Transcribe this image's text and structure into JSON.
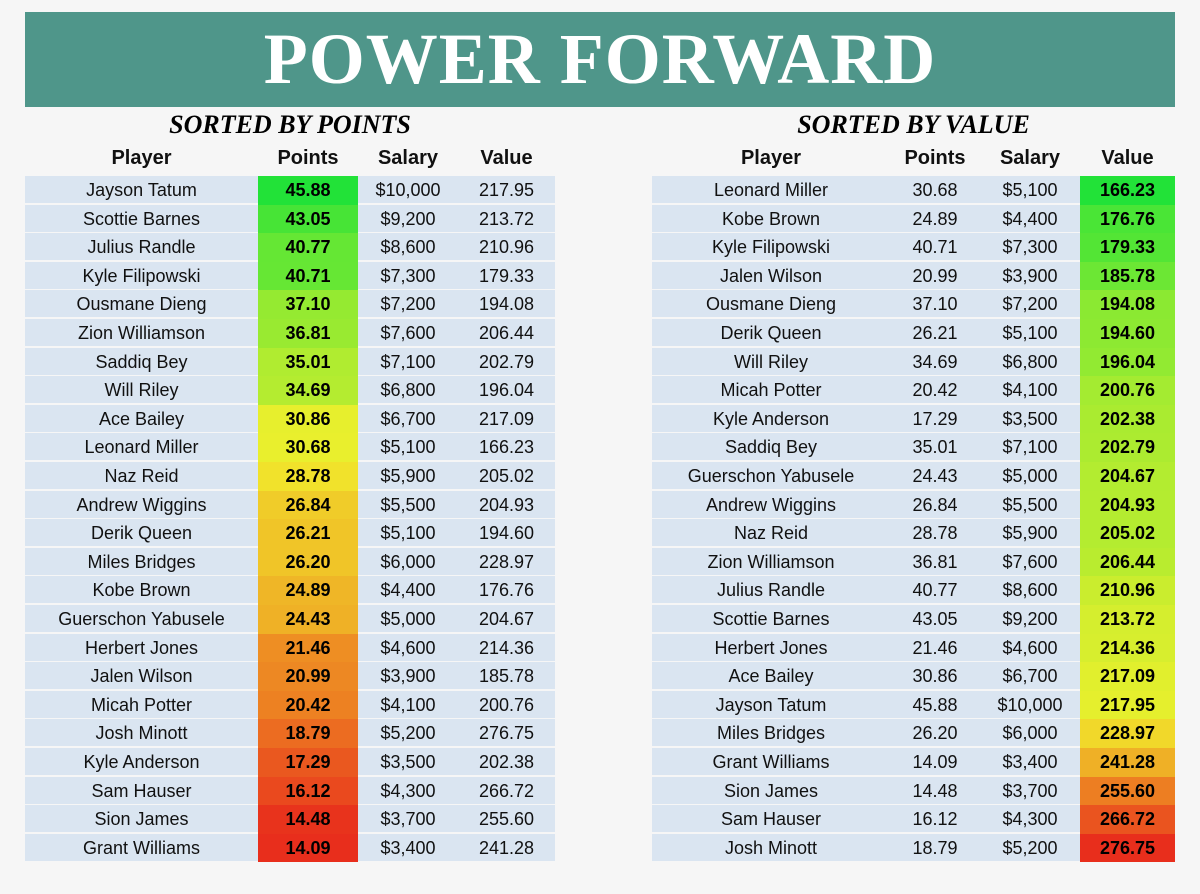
{
  "title": "POWER FORWARD",
  "tables": [
    {
      "subtitle": "SORTED BY POINTS",
      "columns": [
        "Player",
        "Points",
        "Salary",
        "Value"
      ],
      "rows": [
        [
          "Jayson Tatum",
          "45.88",
          "$10,000",
          "217.95"
        ],
        [
          "Scottie Barnes",
          "43.05",
          "$9,200",
          "213.72"
        ],
        [
          "Julius Randle",
          "40.77",
          "$8,600",
          "210.96"
        ],
        [
          "Kyle Filipowski",
          "40.71",
          "$7,300",
          "179.33"
        ],
        [
          "Ousmane Dieng",
          "37.10",
          "$7,200",
          "194.08"
        ],
        [
          "Zion Williamson",
          "36.81",
          "$7,600",
          "206.44"
        ],
        [
          "Saddiq Bey",
          "35.01",
          "$7,100",
          "202.79"
        ],
        [
          "Will Riley",
          "34.69",
          "$6,800",
          "196.04"
        ],
        [
          "Ace Bailey",
          "30.86",
          "$6,700",
          "217.09"
        ],
        [
          "Leonard Miller",
          "30.68",
          "$5,100",
          "166.23"
        ],
        [
          "Naz Reid",
          "28.78",
          "$5,900",
          "205.02"
        ],
        [
          "Andrew Wiggins",
          "26.84",
          "$5,500",
          "204.93"
        ],
        [
          "Derik Queen",
          "26.21",
          "$5,100",
          "194.60"
        ],
        [
          "Miles Bridges",
          "26.20",
          "$6,000",
          "228.97"
        ],
        [
          "Kobe Brown",
          "24.89",
          "$4,400",
          "176.76"
        ],
        [
          "Guerschon Yabusele",
          "24.43",
          "$5,000",
          "204.67"
        ],
        [
          "Herbert Jones",
          "21.46",
          "$4,600",
          "214.36"
        ],
        [
          "Jalen Wilson",
          "20.99",
          "$3,900",
          "185.78"
        ],
        [
          "Micah Potter",
          "20.42",
          "$4,100",
          "200.76"
        ],
        [
          "Josh Minott",
          "18.79",
          "$5,200",
          "276.75"
        ],
        [
          "Kyle Anderson",
          "17.29",
          "$3,500",
          "202.38"
        ],
        [
          "Sam Hauser",
          "16.12",
          "$4,300",
          "266.72"
        ],
        [
          "Sion James",
          "14.48",
          "$3,700",
          "255.60"
        ],
        [
          "Grant Williams",
          "14.09",
          "$3,400",
          "241.28"
        ]
      ]
    },
    {
      "subtitle": "SORTED BY VALUE",
      "columns": [
        "Player",
        "Points",
        "Salary",
        "Value"
      ],
      "rows": [
        [
          "Leonard Miller",
          "30.68",
          "$5,100",
          "166.23"
        ],
        [
          "Kobe Brown",
          "24.89",
          "$4,400",
          "176.76"
        ],
        [
          "Kyle Filipowski",
          "40.71",
          "$7,300",
          "179.33"
        ],
        [
          "Jalen Wilson",
          "20.99",
          "$3,900",
          "185.78"
        ],
        [
          "Ousmane Dieng",
          "37.10",
          "$7,200",
          "194.08"
        ],
        [
          "Derik Queen",
          "26.21",
          "$5,100",
          "194.60"
        ],
        [
          "Will Riley",
          "34.69",
          "$6,800",
          "196.04"
        ],
        [
          "Micah Potter",
          "20.42",
          "$4,100",
          "200.76"
        ],
        [
          "Kyle Anderson",
          "17.29",
          "$3,500",
          "202.38"
        ],
        [
          "Saddiq Bey",
          "35.01",
          "$7,100",
          "202.79"
        ],
        [
          "Guerschon Yabusele",
          "24.43",
          "$5,000",
          "204.67"
        ],
        [
          "Andrew Wiggins",
          "26.84",
          "$5,500",
          "204.93"
        ],
        [
          "Naz Reid",
          "28.78",
          "$5,900",
          "205.02"
        ],
        [
          "Zion Williamson",
          "36.81",
          "$7,600",
          "206.44"
        ],
        [
          "Julius Randle",
          "40.77",
          "$8,600",
          "210.96"
        ],
        [
          "Scottie Barnes",
          "43.05",
          "$9,200",
          "213.72"
        ],
        [
          "Herbert Jones",
          "21.46",
          "$4,600",
          "214.36"
        ],
        [
          "Ace Bailey",
          "30.86",
          "$6,700",
          "217.09"
        ],
        [
          "Jayson Tatum",
          "45.88",
          "$10,000",
          "217.95"
        ],
        [
          "Miles Bridges",
          "26.20",
          "$6,000",
          "228.97"
        ],
        [
          "Grant Williams",
          "14.09",
          "$3,400",
          "241.28"
        ],
        [
          "Sion James",
          "14.48",
          "$3,700",
          "255.60"
        ],
        [
          "Sam Hauser",
          "16.12",
          "$4,300",
          "266.72"
        ],
        [
          "Josh Minott",
          "18.79",
          "$5,200",
          "276.75"
        ]
      ]
    }
  ]
}
